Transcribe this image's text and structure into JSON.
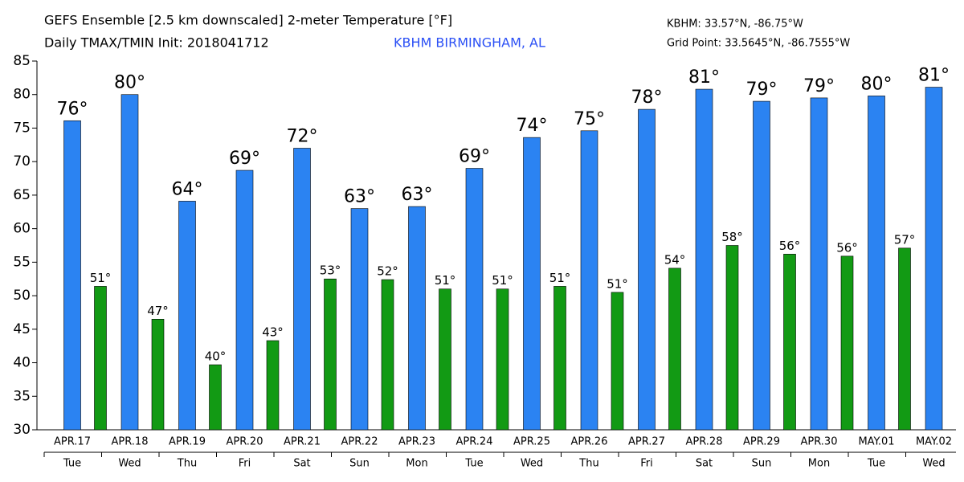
{
  "chart_data": {
    "type": "bar",
    "title": "GEFS Ensemble [2.5 km downscaled] 2-meter Temperature [°F]",
    "subtitle": "Daily TMAX/TMIN Init: 2018041712",
    "location": "KBHM BIRMINGHAM, AL",
    "station_coords": "KBHM: 33.57°N, -86.75°W",
    "grid_point": "Grid Point: 33.5645°N, -86.7555°W",
    "categories": [
      "APR.17",
      "APR.18",
      "APR.19",
      "APR.20",
      "APR.21",
      "APR.22",
      "APR.23",
      "APR.24",
      "APR.25",
      "APR.26",
      "APR.27",
      "APR.28",
      "APR.29",
      "APR.30",
      "MAY.01",
      "MAY.02"
    ],
    "weekdays": [
      "Tue",
      "Wed",
      "Thu",
      "Fri",
      "Sat",
      "Sun",
      "Mon",
      "Tue",
      "Wed",
      "Thu",
      "Fri",
      "Sat",
      "Sun",
      "Mon",
      "Tue",
      "Wed"
    ],
    "series": [
      {
        "name": "TMAX",
        "color": "#2b83f2",
        "values": [
          76.1,
          80,
          64.1,
          68.7,
          72,
          63,
          63.3,
          69,
          73.6,
          74.6,
          77.8,
          80.8,
          79,
          79.5,
          79.8,
          81.1
        ],
        "value_labels": [
          "76°",
          "80°",
          "64°",
          "69°",
          "72°",
          "63°",
          "63°",
          "69°",
          "74°",
          "75°",
          "78°",
          "81°",
          "79°",
          "79°",
          "80°",
          "81°"
        ]
      },
      {
        "name": "TMIN",
        "color": "#129a14",
        "values": [
          51.4,
          46.5,
          39.7,
          43.3,
          52.5,
          52.4,
          51,
          51,
          51.4,
          50.5,
          54.1,
          57.5,
          56.2,
          55.9,
          57.1,
          null
        ],
        "value_labels": [
          "51°",
          "47°",
          "40°",
          "43°",
          "53°",
          "52°",
          "51°",
          "51°",
          "51°",
          "51°",
          "54°",
          "58°",
          "56°",
          "56°",
          "57°",
          null
        ]
      }
    ],
    "ylim": [
      30,
      85
    ],
    "yticks": [
      30,
      35,
      40,
      45,
      50,
      55,
      60,
      65,
      70,
      75,
      80,
      85
    ]
  }
}
